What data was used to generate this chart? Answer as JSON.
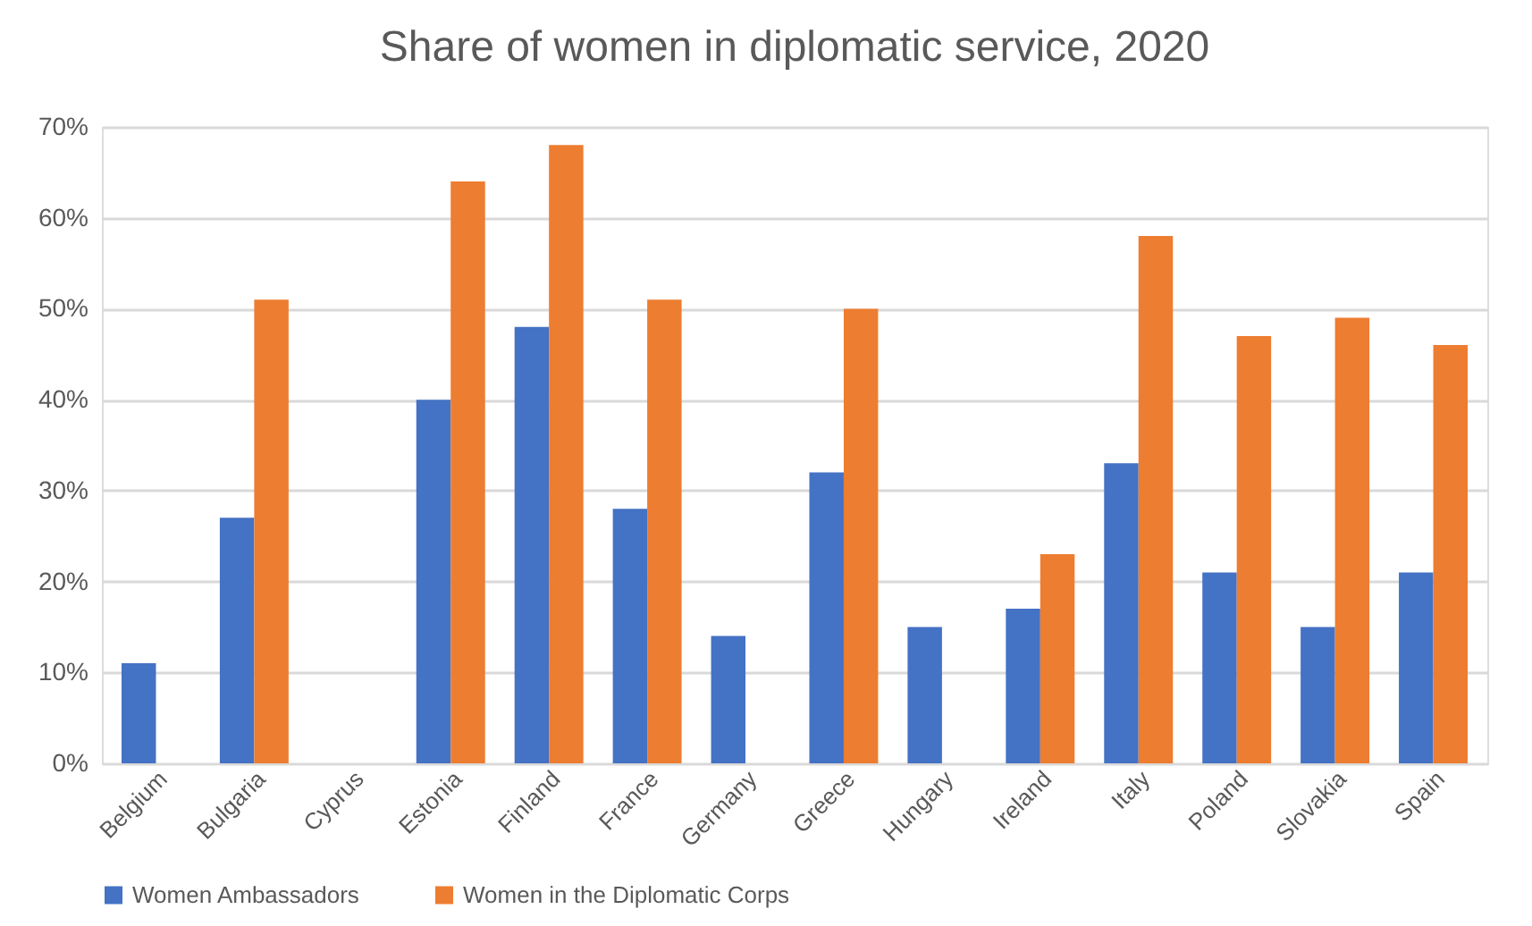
{
  "chart_data": {
    "type": "bar",
    "title": "Share of women in diplomatic service, 2020",
    "categories": [
      "Belgium",
      "Bulgaria",
      "Cyprus",
      "Estonia",
      "Finland",
      "France",
      "Germany",
      "Greece",
      "Hungary",
      "Ireland",
      "Italy",
      "Poland",
      "Slovakia",
      "Spain"
    ],
    "series": [
      {
        "name": "Women Ambassadors",
        "color": "#4472c4",
        "values": [
          11,
          27,
          null,
          40,
          48,
          28,
          14,
          32,
          15,
          17,
          33,
          21,
          15,
          21
        ]
      },
      {
        "name": "Women in the Diplomatic Corps",
        "color": "#ed7d31",
        "values": [
          null,
          51,
          null,
          64,
          68,
          51,
          null,
          50,
          null,
          23,
          58,
          47,
          49,
          46
        ]
      }
    ],
    "ylim": [
      0,
      70
    ],
    "yticks": [
      {
        "value": 0,
        "label": "0%"
      },
      {
        "value": 10,
        "label": "10%"
      },
      {
        "value": 20,
        "label": "20%"
      },
      {
        "value": 30,
        "label": "30%"
      },
      {
        "value": 40,
        "label": "40%"
      },
      {
        "value": 50,
        "label": "50%"
      },
      {
        "value": 60,
        "label": "60%"
      },
      {
        "value": 70,
        "label": "70%"
      }
    ],
    "grid": "y",
    "legend": "bottom"
  }
}
